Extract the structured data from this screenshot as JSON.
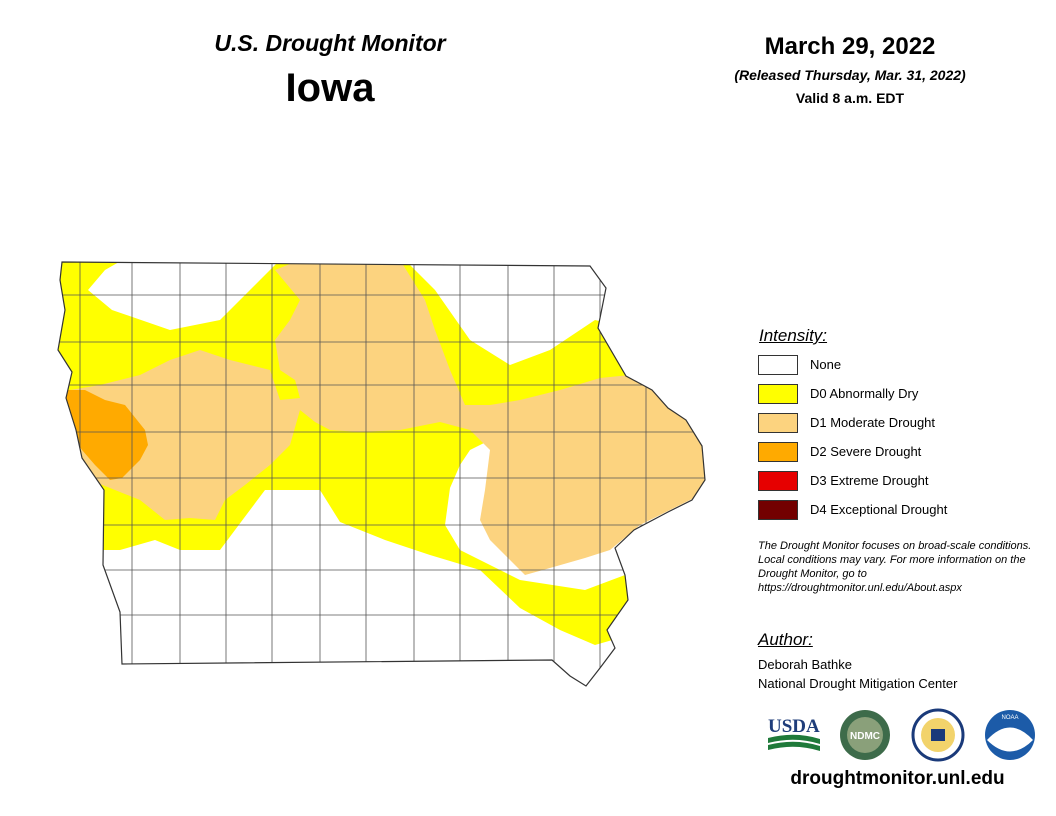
{
  "header": {
    "subtitle": "U.S. Drought Monitor",
    "state": "Iowa",
    "date": "March 29, 2022",
    "released": "(Released Thursday, Mar. 31, 2022)",
    "valid": "Valid 8 a.m. EDT"
  },
  "legend": {
    "title": "Intensity:",
    "items": [
      {
        "label": "None",
        "color": "#ffffff"
      },
      {
        "label": "D0 Abnormally Dry",
        "color": "#ffff00"
      },
      {
        "label": "D1 Moderate Drought",
        "color": "#fcd37f"
      },
      {
        "label": "D2 Severe Drought",
        "color": "#ffaa00"
      },
      {
        "label": "D3 Extreme Drought",
        "color": "#e60000"
      },
      {
        "label": "D4 Exceptional Drought",
        "color": "#730000"
      }
    ]
  },
  "disclaimer": "The Drought Monitor focuses on broad-scale conditions. Local conditions may vary. For more information on the Drought Monitor, go to https://droughtmonitor.unl.edu/About.aspx",
  "author": {
    "title": "Author:",
    "name": "Deborah Bathke",
    "org": "National Drought Mitigation Center"
  },
  "logos": [
    {
      "name": "usda-logo",
      "text": "USDA"
    },
    {
      "name": "ndmc-logo",
      "text": "NDMC"
    },
    {
      "name": "doc-seal-logo"
    },
    {
      "name": "noaa-logo",
      "text": "NOAA"
    }
  ],
  "website": "droughtmonitor.unl.edu"
}
